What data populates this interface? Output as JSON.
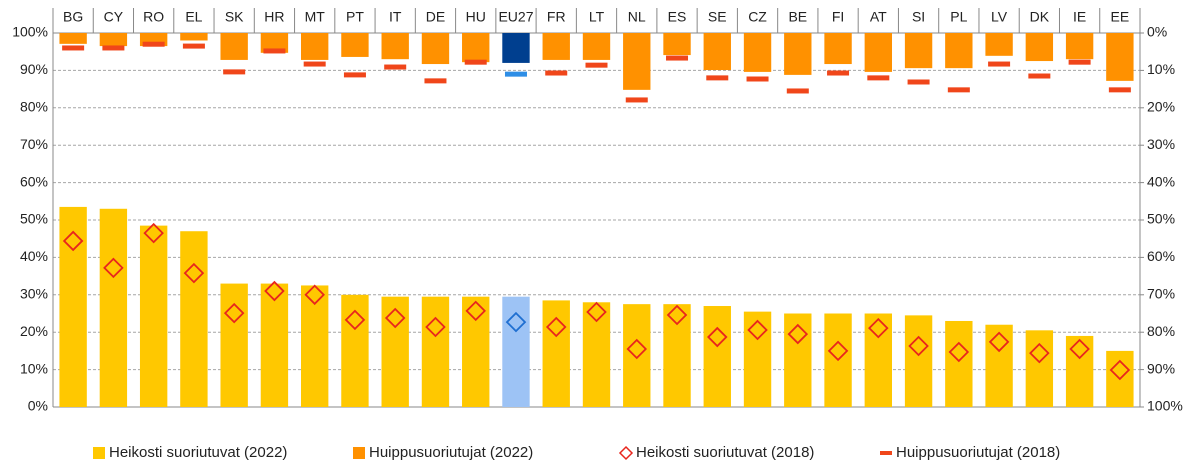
{
  "chart_data": {
    "type": "bar",
    "categories": [
      "BG",
      "CY",
      "RO",
      "EL",
      "SK",
      "HR",
      "MT",
      "PT",
      "IT",
      "DE",
      "HU",
      "EU27",
      "FR",
      "LT",
      "NL",
      "ES",
      "SE",
      "CZ",
      "BE",
      "FI",
      "AT",
      "SI",
      "PL",
      "LV",
      "DK",
      "IE",
      "EE"
    ],
    "highlight": "EU27",
    "series": [
      {
        "name": "Heikosti suoriutuvat (2022)",
        "mark": "bar",
        "axis": "y",
        "color": "#ffc800",
        "highlight_color": "#9dc3f5",
        "values": [
          53.5,
          53,
          48.5,
          47,
          33,
          33,
          32.5,
          30,
          29.5,
          29.5,
          29.5,
          29.5,
          28.5,
          28,
          27.5,
          27.5,
          27,
          25.5,
          25,
          25,
          25,
          24.5,
          23,
          22,
          20.5,
          19,
          15
        ]
      },
      {
        "name": "Huippusuoriutujat (2022)",
        "mark": "bar",
        "axis": "y2",
        "color": "#ff9100",
        "highlight_color": "#003f8f",
        "values": [
          2.9,
          3.5,
          3.5,
          2,
          7.2,
          5.3,
          7.2,
          6.4,
          7,
          8.3,
          7.8,
          8,
          7.2,
          7.2,
          15.2,
          5.9,
          9.9,
          10.4,
          11.2,
          8.3,
          10.4,
          9.4,
          9.4,
          6.1,
          7.5,
          7,
          12.8
        ]
      },
      {
        "name": "Heikosti suoriutuvat (2018)",
        "mark": "diamond",
        "axis": "y",
        "color": "#e8261d",
        "highlight_color": "#1f6fd1",
        "values": [
          44.4,
          37.2,
          46.5,
          35.8,
          25.1,
          31,
          30,
          23.3,
          23.8,
          21.4,
          25.7,
          22.7,
          21.4,
          25.4,
          15.5,
          24.6,
          18.7,
          20.6,
          19.5,
          15,
          21.1,
          16.3,
          14.7,
          17.4,
          14.4,
          15.5,
          9.9
        ]
      },
      {
        "name": "Huippusuoriutujat (2018)",
        "mark": "dash",
        "axis": "y2",
        "color": "#f0461a",
        "highlight_color": "#2e8ee6",
        "values": [
          4,
          4,
          3,
          3.5,
          10.4,
          4.8,
          8.3,
          11.2,
          9.1,
          12.8,
          7.8,
          11,
          10.7,
          8.6,
          17.9,
          6.7,
          12,
          12.3,
          15.5,
          10.7,
          12,
          13.1,
          15.2,
          8.3,
          11.5,
          7.8,
          15.2
        ]
      }
    ],
    "ylim": [
      0,
      100
    ],
    "yticks": [
      {
        "value": 0,
        "label": "0%"
      },
      {
        "value": 10,
        "label": "10%"
      },
      {
        "value": 20,
        "label": "20%"
      },
      {
        "value": 30,
        "label": "30%"
      },
      {
        "value": 40,
        "label": "40%"
      },
      {
        "value": 50,
        "label": "50%"
      },
      {
        "value": 60,
        "label": "60%"
      },
      {
        "value": 70,
        "label": "70%"
      },
      {
        "value": 80,
        "label": "80%"
      },
      {
        "value": 90,
        "label": "90%"
      },
      {
        "value": 100,
        "label": "100%"
      }
    ],
    "y2lim": [
      0,
      100
    ],
    "y2_inverted": true,
    "y2ticks": [
      {
        "value": 0,
        "label": "0%"
      },
      {
        "value": 10,
        "label": "10%"
      },
      {
        "value": 20,
        "label": "20%"
      },
      {
        "value": 30,
        "label": "30%"
      },
      {
        "value": 40,
        "label": "40%"
      },
      {
        "value": 50,
        "label": "50%"
      },
      {
        "value": 60,
        "label": "60%"
      },
      {
        "value": 70,
        "label": "70%"
      },
      {
        "value": 80,
        "label": "80%"
      },
      {
        "value": 90,
        "label": "90%"
      },
      {
        "value": 100,
        "label": "100%"
      }
    ],
    "grid": true,
    "legend": "bottom"
  }
}
